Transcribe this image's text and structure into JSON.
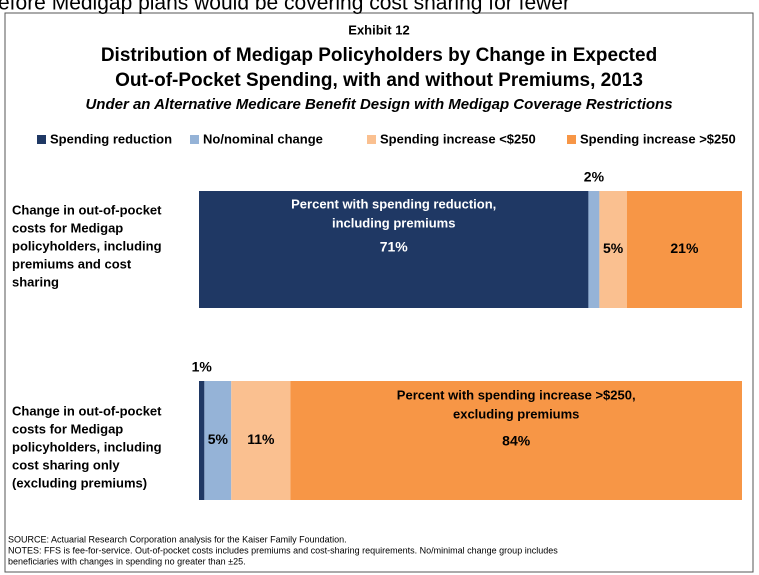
{
  "top_text": "efore Medigap plans would be covering cost sharing for fewer",
  "chart_data": {
    "type": "stacked-barh",
    "exhibit": "Exhibit 12",
    "title": [
      "Distribution of Medigap Policyholders by Change in Expected",
      "Out-of-Pocket Spending, with and without Premiums, 2013"
    ],
    "subtitle": "Under an Alternative Medicare Benefit Design with Medigap Coverage Restrictions",
    "categories": [
      [
        "Change in out-of-pocket",
        "costs for Medigap",
        "policyholders, including",
        "premiums and cost",
        "sharing"
      ],
      [
        "Change in out-of-pocket",
        "costs for Medigap",
        "policyholders, including",
        "cost sharing only",
        "(excluding premiums)"
      ]
    ],
    "series": [
      {
        "name": "Spending reduction",
        "color": "#1f3864",
        "values": [
          71,
          1
        ],
        "value_labels": [
          "71%",
          "1%"
        ]
      },
      {
        "name": "No/nominal change",
        "color": "#95b3d7",
        "values": [
          2,
          5
        ],
        "value_labels": [
          "2%",
          "5%"
        ]
      },
      {
        "name": "Spending increase <$250",
        "color": "#fac090",
        "values": [
          5,
          11
        ],
        "value_labels": [
          "5%",
          "11%"
        ]
      },
      {
        "name": "Spending increase >$250",
        "color": "#f79646",
        "values": [
          21,
          84
        ],
        "value_labels": [
          "21%",
          "84%"
        ]
      }
    ],
    "annotations": [
      {
        "lines": [
          "Percent with spending reduction,",
          "including premiums"
        ]
      },
      {
        "lines": [
          "Percent with spending increase >$250,",
          "excluding premiums"
        ]
      }
    ],
    "legend": "top",
    "notes": [
      "SOURCE: Actuarial Research Corporation analysis for the Kaiser Family Foundation.",
      "NOTES: FFS is fee-for-service. Out-of-pocket costs includes premiums and cost-sharing requirements. No/minimal change group includes",
      "beneficiaries with changes in spending no greater than ±25."
    ]
  }
}
